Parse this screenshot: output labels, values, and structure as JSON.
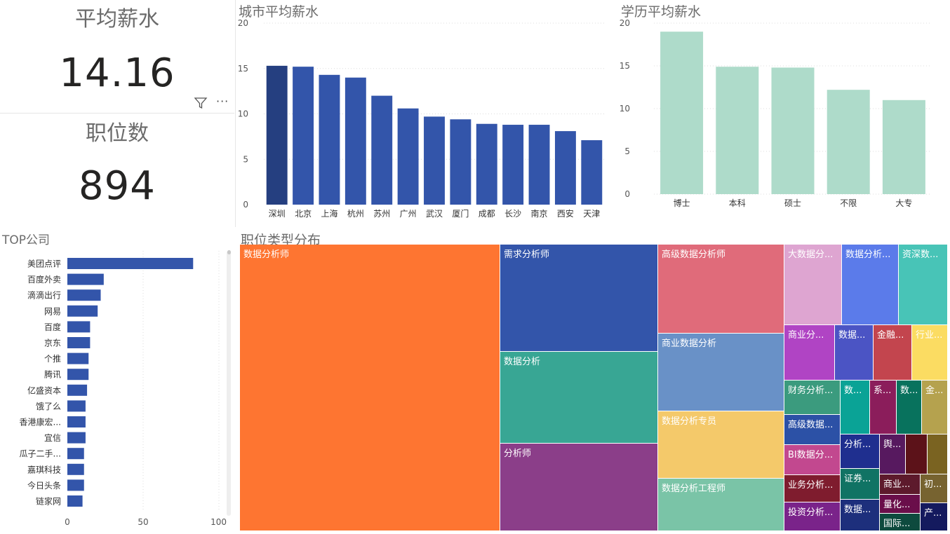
{
  "kpi": {
    "avg_salary": {
      "title": "平均薪水",
      "value": "14.16"
    },
    "job_count": {
      "title": "职位数",
      "value": "894"
    }
  },
  "visual_header": {
    "filter_icon": "filter-icon",
    "more_icon": "more-options-icon",
    "more_label": "···"
  },
  "colors": {
    "bar": "#3355aa",
    "bar_selected": "#253f80",
    "edu_bar": "#aedbca",
    "grid": "#dcdcdc",
    "axis_text": "#555555"
  },
  "city_chart": {
    "title": "城市平均薪水",
    "chart_data": {
      "type": "bar",
      "categories": [
        "深圳",
        "北京",
        "上海",
        "杭州",
        "苏州",
        "广州",
        "武汉",
        "厦门",
        "成都",
        "长沙",
        "南京",
        "西安",
        "天津"
      ],
      "values": [
        15.3,
        15.2,
        14.3,
        14.0,
        12.0,
        10.6,
        9.7,
        9.4,
        8.9,
        8.8,
        8.8,
        8.1,
        7.1
      ],
      "ylim": [
        0,
        20
      ],
      "yticks": [
        0,
        5,
        10,
        15,
        20
      ],
      "highlight_index": 0
    }
  },
  "edu_chart": {
    "title": "学历平均薪水",
    "chart_data": {
      "type": "bar",
      "categories": [
        "博士",
        "本科",
        "硕士",
        "不限",
        "大专"
      ],
      "values": [
        19.0,
        14.9,
        14.8,
        12.2,
        11.0
      ],
      "ylim": [
        0,
        20
      ],
      "yticks": [
        0,
        5,
        10,
        15,
        20
      ]
    }
  },
  "company_chart": {
    "title": "TOP公司",
    "chart_data": {
      "type": "bar",
      "orientation": "horizontal",
      "categories": [
        "美团点评",
        "百度外卖",
        "滴滴出行",
        "网易",
        "百度",
        "京东",
        "个推",
        "腾讯",
        "亿盛资本",
        "饿了么",
        "香港康宏...",
        "宜信",
        "瓜子二手...",
        "嘉琪科技",
        "今日头条",
        "链家网"
      ],
      "values": [
        83,
        24,
        22,
        20,
        15,
        15,
        14,
        14,
        13,
        12,
        12,
        12,
        11,
        11,
        11,
        10
      ],
      "xlim": [
        0,
        100
      ],
      "xticks": [
        0,
        50,
        100
      ]
    }
  },
  "treemap": {
    "title": "职位类型分布",
    "chart_data": {
      "type": "treemap",
      "labels": [
        "数据分析师",
        "需求分析师",
        "数据分析",
        "分析师",
        "高级数据分析师",
        "商业数据分析",
        "数据分析专员",
        "数据分析工程师",
        "大数据分...",
        "数据分析...",
        "资深数...",
        "商业分...",
        "数据...",
        "金融...",
        "行业...",
        "财务分析...",
        "数...",
        "系...",
        "数...",
        "金...",
        "高级数据...",
        "BI数据分...",
        "业务分析...",
        "投资分析...",
        "分析...",
        "证券...",
        "数据...",
        "舆...",
        "商业...",
        "量化...",
        "国际...",
        "初...",
        "产..."
      ]
    }
  }
}
